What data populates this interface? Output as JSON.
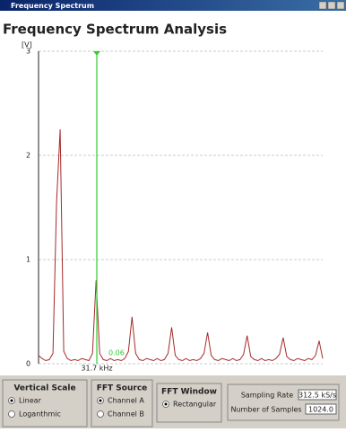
{
  "window": {
    "title": "Frequency Spectrum"
  },
  "header": {
    "title": "Frequency Spectrum Analysis"
  },
  "chart_data": {
    "type": "line",
    "y_label": "[V]",
    "values": [
      0.08,
      0.05,
      0.03,
      0.04,
      0.1,
      1.55,
      2.25,
      0.12,
      0.05,
      0.03,
      0.04,
      0.03,
      0.05,
      0.04,
      0.03,
      0.1,
      0.8,
      0.1,
      0.04,
      0.03,
      0.05,
      0.03,
      0.04,
      0.03,
      0.05,
      0.12,
      0.45,
      0.1,
      0.04,
      0.03,
      0.05,
      0.04,
      0.03,
      0.05,
      0.03,
      0.04,
      0.1,
      0.35,
      0.08,
      0.04,
      0.03,
      0.05,
      0.03,
      0.04,
      0.03,
      0.05,
      0.1,
      0.3,
      0.08,
      0.04,
      0.03,
      0.05,
      0.04,
      0.03,
      0.05,
      0.03,
      0.04,
      0.09,
      0.27,
      0.07,
      0.04,
      0.03,
      0.05,
      0.03,
      0.04,
      0.03,
      0.05,
      0.09,
      0.25,
      0.07,
      0.04,
      0.03,
      0.05,
      0.04,
      0.03,
      0.05,
      0.04,
      0.08,
      0.22,
      0.05
    ],
    "color": "#a52a2a",
    "ylim": [
      0,
      3
    ],
    "yticks": [
      0,
      1,
      2,
      3
    ],
    "grid": true,
    "cursor": {
      "value": 0.06,
      "frequency": "31.7 kHz",
      "color": "#33cc33"
    }
  },
  "controls": {
    "vertical_scale": {
      "title": "Vertical Scale",
      "options": [
        "Linear",
        "Loganthmic"
      ],
      "selected": 0
    },
    "fft_source": {
      "title": "FFT Source",
      "options": [
        "Channel A",
        "Channel B"
      ],
      "selected": 0
    },
    "fft_window": {
      "title": "FFT Window",
      "options": [
        "Rectangular"
      ],
      "selected": 0
    },
    "info": {
      "sampling_rate": {
        "label": "Sampling Rate",
        "value": "312.5 kS/s"
      },
      "samples": {
        "label": "Number of Samples",
        "value": "1024.0"
      }
    }
  }
}
